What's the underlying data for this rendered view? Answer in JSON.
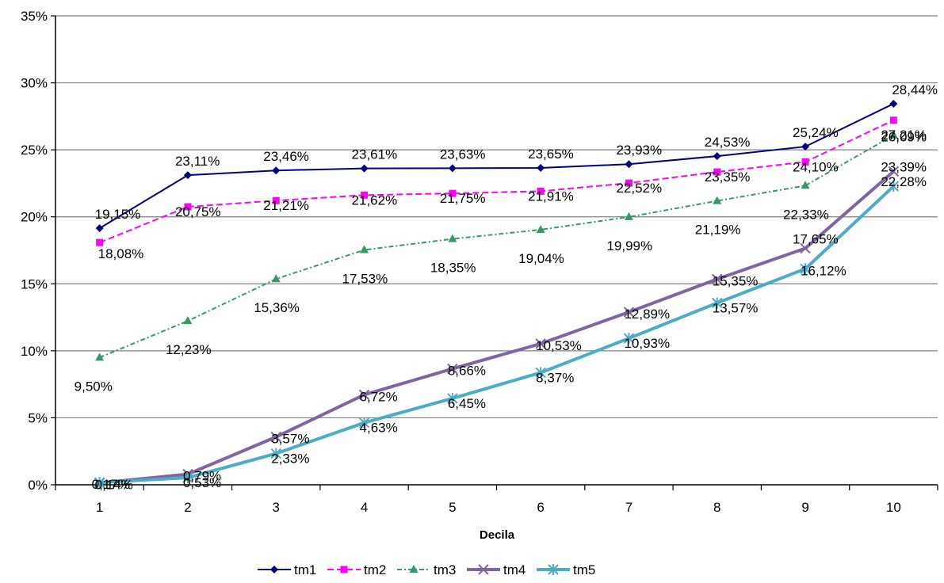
{
  "chart_data": {
    "type": "line",
    "xlabel": "Decila",
    "ylabel": "",
    "categories": [
      "1",
      "2",
      "3",
      "4",
      "5",
      "6",
      "7",
      "8",
      "9",
      "10"
    ],
    "ylim": [
      0,
      35
    ],
    "y_ticks": [
      "0%",
      "5%",
      "10%",
      "15%",
      "20%",
      "25%",
      "30%",
      "35%"
    ],
    "grid": "horizontal",
    "legend_position": "bottom",
    "series": [
      {
        "name": "tm1",
        "color": "#000080",
        "line_style": "solid",
        "marker": "diamond",
        "values": [
          19.15,
          23.11,
          23.46,
          23.61,
          23.63,
          23.65,
          23.93,
          24.53,
          25.24,
          28.44
        ],
        "labels": [
          "19,15%",
          "23,11%",
          "23,46%",
          "23,61%",
          "23,63%",
          "23,65%",
          "23,93%",
          "24,53%",
          "25,24%",
          "28,44%"
        ]
      },
      {
        "name": "tm2",
        "color": "#FF00FF",
        "line_style": "dashed",
        "marker": "square",
        "values": [
          18.08,
          20.75,
          21.21,
          21.62,
          21.75,
          21.91,
          22.52,
          23.35,
          24.1,
          27.21
        ],
        "labels": [
          "18,08%",
          "20,75%",
          "21,21%",
          "21,62%",
          "21,75%",
          "21,91%",
          "22,52%",
          "23,35%",
          "24,10%",
          "27,21%"
        ]
      },
      {
        "name": "tm3",
        "color": "#339966",
        "line_style": "dash-dot",
        "marker": "triangle",
        "values": [
          9.5,
          12.23,
          15.36,
          17.53,
          18.35,
          19.04,
          19.99,
          21.19,
          22.33,
          26.09
        ],
        "labels": [
          "9,50%",
          "12,23%",
          "15,36%",
          "17,53%",
          "18,35%",
          "19,04%",
          "19,99%",
          "21,19%",
          "22,33%",
          "26,09%"
        ]
      },
      {
        "name": "tm4",
        "color": "#8064A2",
        "line_style": "solid-thick",
        "marker": "x",
        "values": [
          0.14,
          0.79,
          3.57,
          6.72,
          8.66,
          10.53,
          12.89,
          15.35,
          17.65,
          23.39
        ],
        "labels": [
          "0,14%",
          "0,79%",
          "3,57%",
          "6,72%",
          "8,66%",
          "10,53%",
          "12,89%",
          "15,35%",
          "17,65%",
          "23,39%"
        ]
      },
      {
        "name": "tm5",
        "color": "#4BACC6",
        "line_style": "solid-thick",
        "marker": "star",
        "values": [
          0.17,
          0.53,
          2.33,
          4.63,
          6.45,
          8.37,
          10.93,
          13.57,
          16.12,
          22.28
        ],
        "labels": [
          "0,17%",
          "0,53%",
          "2,33%",
          "4,63%",
          "6,45%",
          "8,37%",
          "10,93%",
          "13,57%",
          "16,12%",
          "22,28%"
        ]
      }
    ]
  }
}
